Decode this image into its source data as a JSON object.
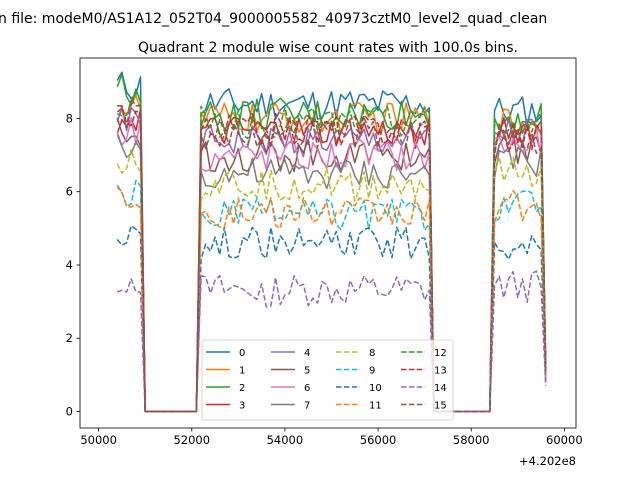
{
  "figure": {
    "suptitle": "n file: modeM0/AS1A12_052T04_9000005582_40973cztM0_level2_quad_clean",
    "title": "Quadrant 2 module wise count rates with 100.0s bins."
  },
  "chart_data": {
    "type": "line",
    "title": "Quadrant 2 module wise count rates with 100.0s bins.",
    "xlabel": "",
    "ylabel": "",
    "x_offset_label": "+4.202e8",
    "x_offset": 420200000,
    "xlim": [
      49600,
      60250
    ],
    "ylim": [
      -0.45,
      9.65
    ],
    "x_ticks": [
      50000,
      52000,
      54000,
      56000,
      58000,
      60000
    ],
    "y_ticks": [
      0,
      2,
      4,
      6,
      8
    ],
    "grid": false,
    "legend": {
      "placement": "lower center",
      "ncol": 4
    },
    "segments": [
      {
        "x_start": 50400,
        "x_end": 50900,
        "step": 100,
        "state": "on"
      },
      {
        "x_start": 51000,
        "x_end": 52100,
        "step": 100,
        "state": "off"
      },
      {
        "x_start": 52200,
        "x_end": 57100,
        "step": 100,
        "state": "on"
      },
      {
        "x_start": 57200,
        "x_end": 58400,
        "step": 100,
        "state": "off"
      },
      {
        "x_start": 58500,
        "x_end": 59500,
        "step": 100,
        "state": "on"
      },
      {
        "x_start": 59600,
        "x_end": 59600,
        "step": 100,
        "state": "tail"
      }
    ],
    "series": [
      {
        "name": "0",
        "color": "#1f77b4",
        "dash": "solid",
        "level_first": 8.9,
        "level_main": 8.4,
        "level_last": 8.2,
        "tail": 1.3
      },
      {
        "name": "1",
        "color": "#ff7f0e",
        "dash": "solid",
        "level_first": 8.3,
        "level_main": 8.0,
        "level_last": 7.9,
        "tail": 1.1
      },
      {
        "name": "2",
        "color": "#2ca02c",
        "dash": "solid",
        "level_first": 8.8,
        "level_main": 8.1,
        "level_last": 8.0,
        "tail": 1.3
      },
      {
        "name": "3",
        "color": "#d62728",
        "dash": "solid",
        "level_first": 8.0,
        "level_main": 7.6,
        "level_last": 7.7,
        "tail": 1.2
      },
      {
        "name": "4",
        "color": "#9467bd",
        "dash": "solid",
        "level_first": 7.9,
        "level_main": 7.4,
        "level_last": 7.6,
        "tail": 1.1
      },
      {
        "name": "5",
        "color": "#8c564b",
        "dash": "solid",
        "level_first": 7.6,
        "level_main": 7.0,
        "level_last": 7.2,
        "tail": 1.0
      },
      {
        "name": "6",
        "color": "#e377c2",
        "dash": "solid",
        "level_first": 7.7,
        "level_main": 7.0,
        "level_last": 7.3,
        "tail": 1.0
      },
      {
        "name": "7",
        "color": "#7f7f7f",
        "dash": "solid",
        "level_first": 7.2,
        "level_main": 6.5,
        "level_last": 6.8,
        "tail": 1.0
      },
      {
        "name": "8",
        "color": "#bcbd22",
        "dash": "dashed",
        "level_first": 6.9,
        "level_main": 6.2,
        "level_last": 6.5,
        "tail": 0.9
      },
      {
        "name": "9",
        "color": "#17becf",
        "dash": "dashed",
        "level_first": 5.9,
        "level_main": 5.4,
        "level_last": 5.6,
        "tail": 0.8
      },
      {
        "name": "10",
        "color": "#1f77b4",
        "dash": "dashed",
        "level_first": 4.9,
        "level_main": 4.6,
        "level_last": 4.6,
        "tail": 0.8
      },
      {
        "name": "11",
        "color": "#ff7f0e",
        "dash": "dashed",
        "level_first": 5.9,
        "level_main": 5.4,
        "level_last": 5.6,
        "tail": 0.9
      },
      {
        "name": "12",
        "color": "#2ca02c",
        "dash": "dashed",
        "level_first": 8.4,
        "level_main": 7.9,
        "level_last": 7.8,
        "tail": 1.2
      },
      {
        "name": "13",
        "color": "#d62728",
        "dash": "dashed",
        "level_first": 8.2,
        "level_main": 7.7,
        "level_last": 7.5,
        "tail": 1.2
      },
      {
        "name": "14",
        "color": "#9467bd",
        "dash": "dashed",
        "level_first": 3.6,
        "level_main": 3.3,
        "level_last": 3.4,
        "tail": 0.7
      },
      {
        "name": "15",
        "color": "#8c564b",
        "dash": "dashed",
        "level_first": 8.1,
        "level_main": 7.6,
        "level_last": 7.4,
        "tail": 1.1
      }
    ]
  }
}
